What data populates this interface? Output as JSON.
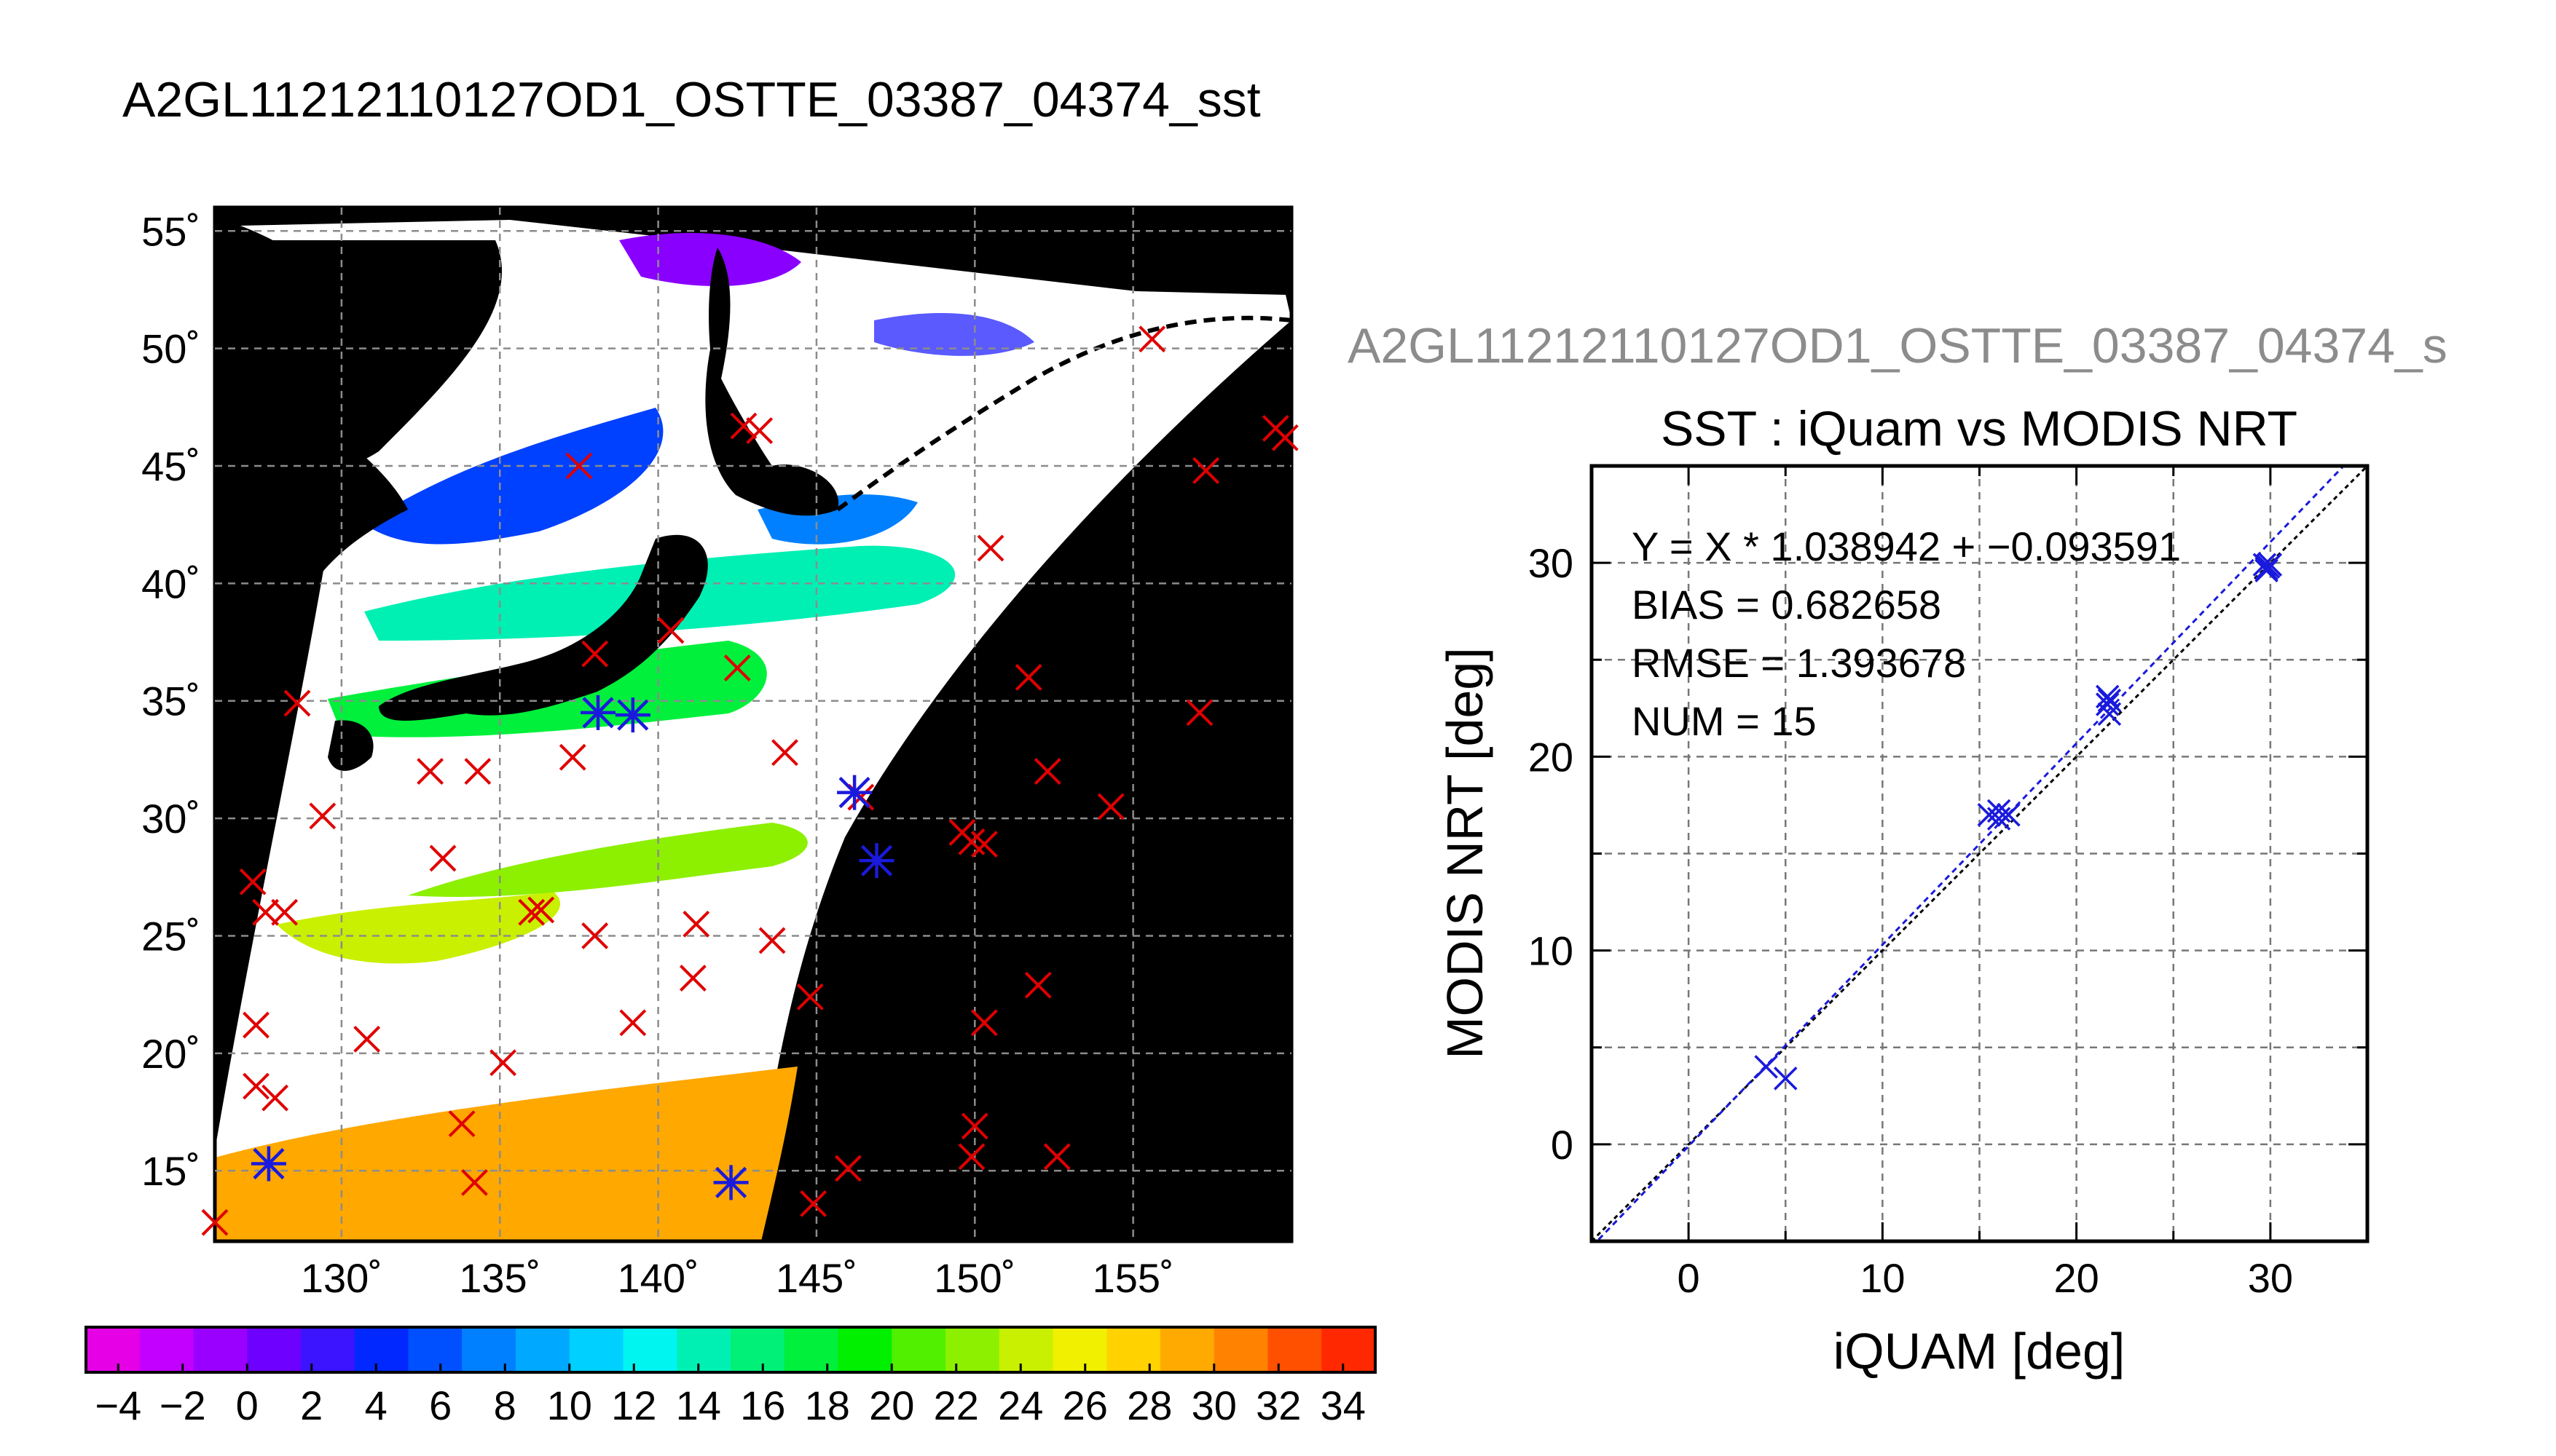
{
  "map": {
    "title": "A2GL11212110127OD1_OSTTE_03387_04374_sst",
    "lon_ticks": [
      "130˚",
      "135˚",
      "140˚",
      "145˚",
      "150˚",
      "155˚"
    ],
    "lat_ticks": [
      "55˚",
      "50˚",
      "45˚",
      "40˚",
      "35˚",
      "30˚",
      "25˚",
      "20˚",
      "15˚"
    ],
    "lon_range": [
      126,
      160
    ],
    "lat_range": [
      12,
      56
    ]
  },
  "colorbar": {
    "ticks": [
      "−4",
      "−2",
      "0",
      "2",
      "4",
      "6",
      "8",
      "10",
      "12",
      "14",
      "16",
      "18",
      "20",
      "22",
      "24",
      "26",
      "28",
      "30",
      "32",
      "34"
    ],
    "range": [
      -5,
      35
    ],
    "colors": [
      "#e600e6",
      "#c300ff",
      "#9a00ff",
      "#6e00ff",
      "#3c14ff",
      "#0028ff",
      "#0050ff",
      "#0080ff",
      "#00a8ff",
      "#00d0ff",
      "#00f5f0",
      "#00f0b4",
      "#00f078",
      "#00f03c",
      "#00f000",
      "#50f000",
      "#8cf000",
      "#c8f000",
      "#f0f000",
      "#ffd200",
      "#ffaa00",
      "#ff8200",
      "#ff5000",
      "#ff2800"
    ]
  },
  "scatter": {
    "overlay_title": "A2GL11212110127OD1_OSTTE_03387_04374_s",
    "title": "SST : iQuam vs MODIS NRT",
    "xlabel": "iQUAM [deg]",
    "ylabel": "MODIS NRT [deg]",
    "stats": [
      "Y = X * 1.038942 + −0.093591",
      "BIAS = 0.682658",
      "RMSE = 1.393678",
      "NUM = 15"
    ],
    "x_ticks": [
      "0",
      "10",
      "20",
      "30"
    ],
    "y_ticks": [
      "0",
      "10",
      "20",
      "30"
    ],
    "accent": "#1a1adc"
  },
  "chart_data": [
    {
      "type": "scatter",
      "title": "A2GL11212110127OD1_OSTTE_03387_04374_sst",
      "xlim": [
        126,
        160
      ],
      "ylim": [
        12,
        56
      ],
      "series": [
        {
          "name": "",
          "marker": "x",
          "color": "#e00000",
          "x": [
            127.2,
            157.3,
            159.5,
            159.8,
            137.5,
            155.6,
            142.7,
            143.2,
            150.5,
            140.4,
            138.0,
            128.6,
            129.4,
            151.7,
            157.1,
            142.5,
            134.3,
            137.3,
            132.8,
            128.2,
            136.3,
            144.0,
            146.4,
            152.3,
            154.3,
            149.6,
            149.9,
            150.3,
            133.2,
            127.6,
            136.0,
            138.0,
            141.2,
            143.6,
            141.1,
            152.0,
            150.3,
            127.3,
            130.8,
            139.2,
            135.1,
            127.3,
            127.9,
            133.8,
            150.0,
            149.9,
            146.0,
            152.6,
            144.8,
            144.9,
            134.2,
            126.0
          ],
          "y": [
            27.3,
            44.8,
            46.6,
            46.2,
            45.0,
            50.4,
            46.7,
            46.5,
            41.5,
            38.0,
            37.0,
            34.9,
            30.1,
            36.0,
            34.5,
            36.4,
            32.0,
            32.6,
            32.0,
            26.0,
            26.1,
            32.8,
            30.9,
            32.0,
            30.5,
            29.4,
            29.0,
            28.9,
            28.3,
            26.0,
            26.0,
            25.0,
            25.5,
            24.8,
            23.2,
            22.9,
            21.3,
            21.2,
            20.6,
            21.3,
            19.6,
            18.6,
            18.1,
            17.0,
            16.9,
            15.6,
            15.1,
            15.6,
            22.4,
            13.6,
            14.5,
            12.8
          ]
        },
        {
          "name": "",
          "marker": "asterisk",
          "color": "#1a1adc",
          "x": [
            127.7,
            138.1,
            139.2,
            146.2,
            146.9,
            142.3
          ],
          "y": [
            15.3,
            34.5,
            34.4,
            31.1,
            28.2,
            14.5
          ]
        }
      ]
    },
    {
      "type": "scatter",
      "title": "SST : iQuam vs MODIS NRT",
      "xlabel": "iQUAM [deg]",
      "ylabel": "MODIS NRT [deg]",
      "xlim": [
        -5,
        35
      ],
      "ylim": [
        -5,
        35
      ],
      "grid": true,
      "series": [
        {
          "name": "",
          "marker": "x",
          "color": "#1a1adc",
          "x": [
            4.0,
            5.0,
            15.5,
            16.0,
            16.5,
            21.6,
            21.6,
            21.7,
            21.7,
            29.7,
            29.8,
            29.9,
            30.0,
            29.8,
            16.0
          ],
          "y": [
            4.0,
            3.4,
            17.0,
            17.2,
            17.0,
            23.1,
            22.7,
            22.2,
            22.9,
            29.9,
            29.7,
            29.8,
            29.9,
            29.6,
            16.8
          ]
        }
      ],
      "fit": {
        "slope": 1.038942,
        "intercept": -0.093591
      }
    }
  ]
}
